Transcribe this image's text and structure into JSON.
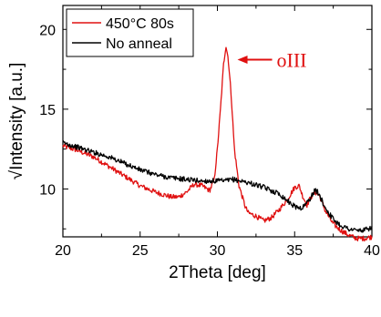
{
  "chart_data": {
    "type": "line",
    "title": "",
    "xlabel": "2Theta [deg]",
    "ylabel": "√Intensity [a.u.]",
    "xlim": [
      20,
      40
    ],
    "ylim": [
      7,
      21.5
    ],
    "x_ticks": [
      20,
      25,
      30,
      35,
      40
    ],
    "y_ticks": [
      10,
      15,
      20
    ],
    "grid": false,
    "legend_position": "top-left",
    "series": [
      {
        "name": "450°C 80s",
        "color": "#e01010",
        "x": [
          20,
          21,
          22,
          23,
          24,
          25,
          26,
          27,
          27.5,
          28,
          28.5,
          29,
          29.5,
          29.8,
          30,
          30.2,
          30.4,
          30.55,
          30.7,
          30.9,
          31.1,
          31.4,
          31.8,
          32,
          32.5,
          33,
          33.5,
          34,
          34.5,
          35,
          35.3,
          35.5,
          35.8,
          36,
          36.3,
          36.6,
          37,
          37.5,
          38,
          38.5,
          39,
          39.5,
          40
        ],
        "y": [
          12.7,
          12.4,
          12.0,
          11.4,
          10.8,
          10.2,
          9.8,
          9.5,
          9.5,
          9.8,
          10.3,
          10.2,
          9.9,
          10.6,
          12.5,
          15.0,
          17.8,
          19.0,
          18.2,
          15.8,
          12.5,
          10.2,
          8.9,
          8.5,
          8.3,
          8.0,
          8.2,
          8.7,
          9.3,
          10.1,
          10.2,
          9.6,
          9.0,
          9.4,
          9.8,
          9.6,
          8.6,
          7.8,
          7.4,
          7.1,
          6.9,
          6.9,
          7.0
        ]
      },
      {
        "name": "No anneal",
        "color": "#000000",
        "x": [
          20,
          21,
          22,
          23,
          24,
          25,
          26,
          27,
          28,
          29,
          30,
          30.5,
          31,
          31.5,
          32,
          33,
          34,
          34.5,
          35,
          35.5,
          36,
          36.3,
          36.5,
          36.8,
          37,
          37.5,
          38,
          38.5,
          39,
          39.5,
          40
        ],
        "y": [
          12.9,
          12.6,
          12.3,
          12.0,
          11.6,
          11.2,
          10.9,
          10.7,
          10.6,
          10.5,
          10.5,
          10.5,
          10.6,
          10.5,
          10.4,
          10.1,
          9.7,
          9.3,
          8.9,
          8.8,
          9.4,
          9.9,
          9.8,
          9.2,
          8.8,
          8.1,
          7.7,
          7.5,
          7.4,
          7.4,
          7.6
        ]
      }
    ],
    "annotations": [
      {
        "text": "oIII",
        "color": "#e01010",
        "x": 31.3,
        "y": 18.1,
        "arrow": "left"
      }
    ]
  }
}
